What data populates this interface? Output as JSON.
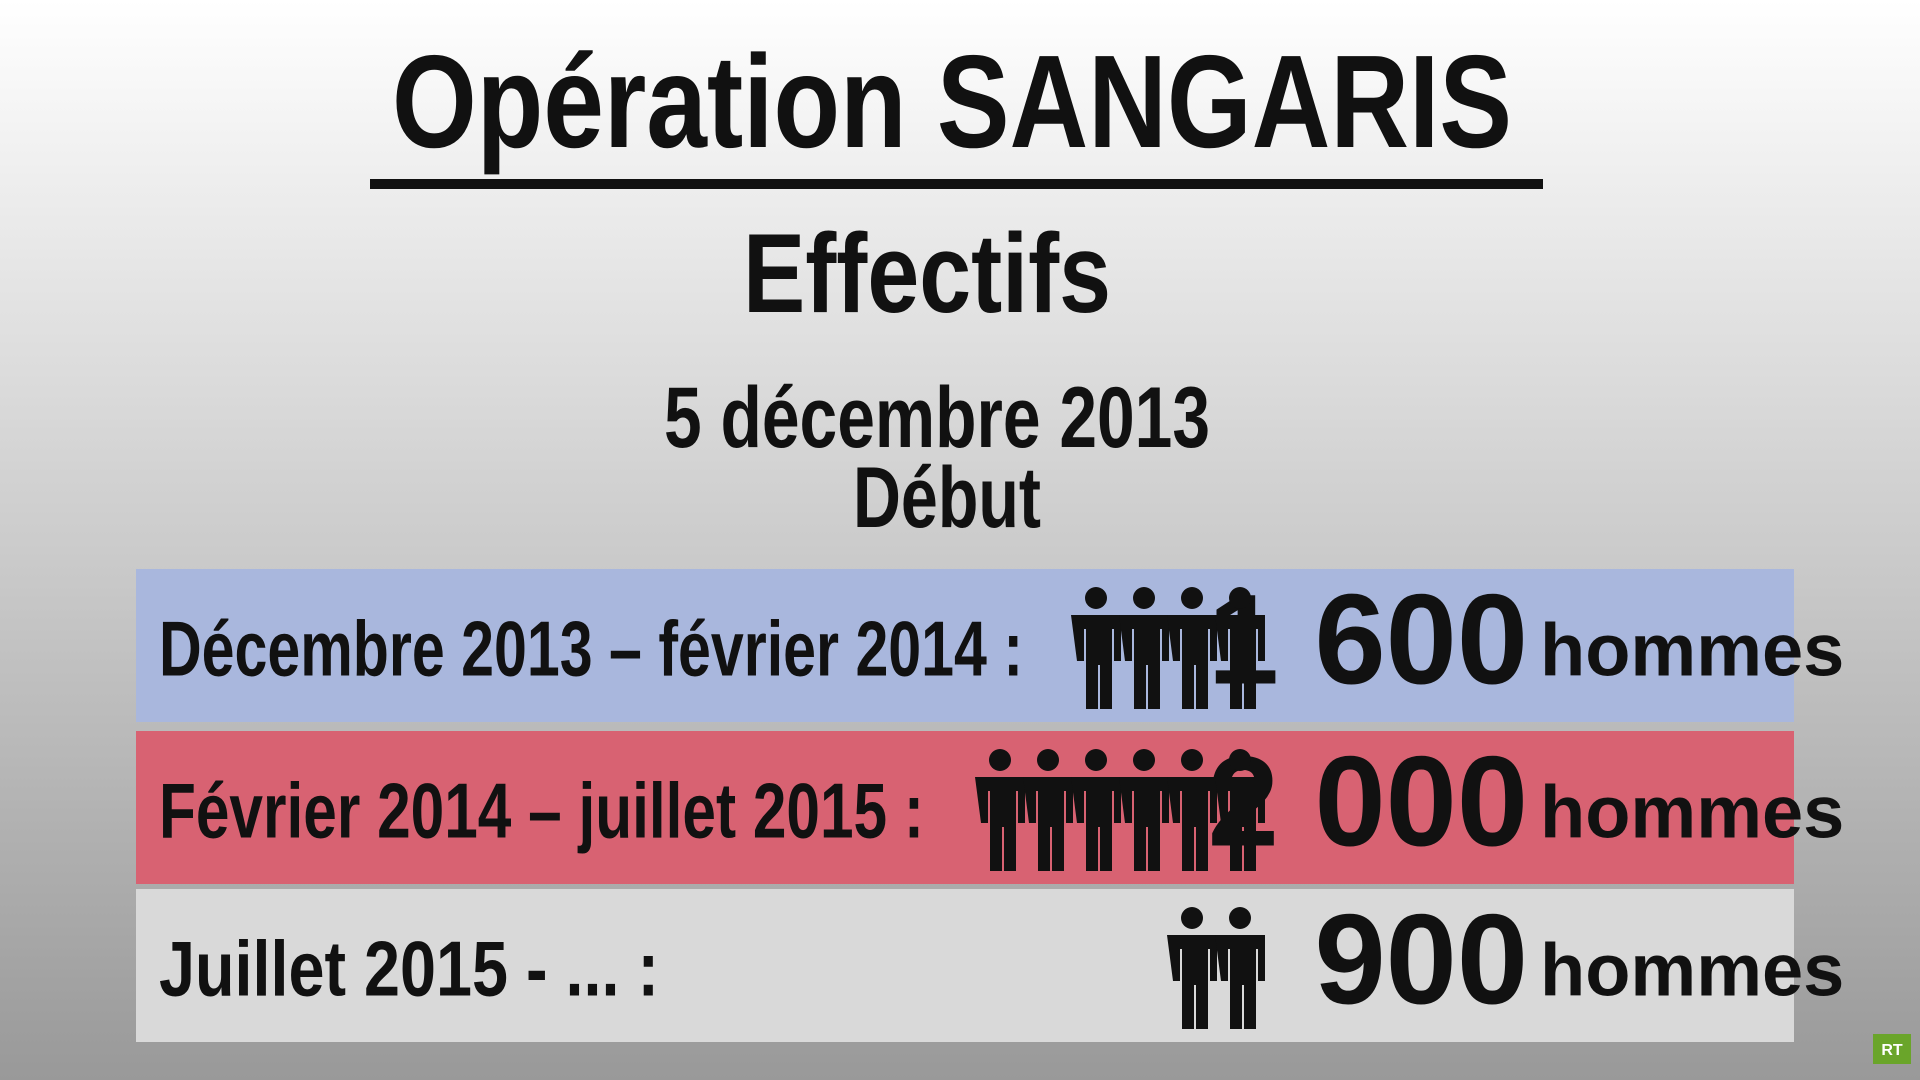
{
  "header": {
    "title": "Opération SANGARIS",
    "subtitle": "Effectifs",
    "date": "5 décembre 2013",
    "date_label": "Début"
  },
  "rows": [
    {
      "period": "Décembre 2013 – février 2014 :",
      "count": "1 600",
      "unit": "hommes",
      "icons": 4,
      "color": "#a9b7dd"
    },
    {
      "period": "Février 2014 – juillet 2015 :",
      "count": "2 000",
      "unit": "hommes",
      "icons": 6,
      "color": "#d86272"
    },
    {
      "period": "Juillet  2015 - ... :",
      "count": "900",
      "unit": "hommes",
      "icons": 2,
      "color": "#d9d9d9"
    }
  ],
  "logo": "RT"
}
